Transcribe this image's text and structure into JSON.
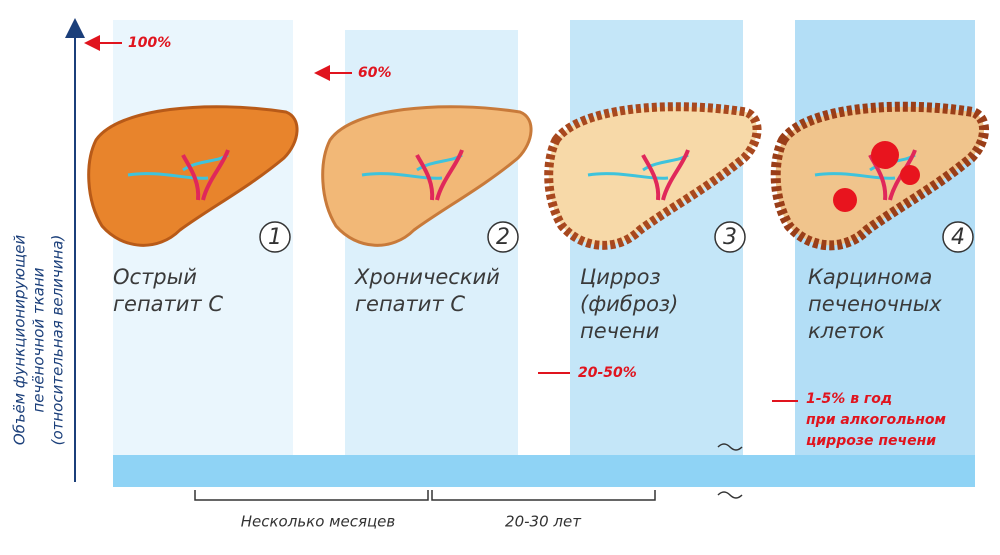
{
  "y_axis_label": {
    "lines": [
      "Объём функционирующей",
      "печёночной ткани",
      "(относительная величина)"
    ]
  },
  "stages": [
    {
      "number": "1",
      "label": [
        "Острый",
        "гепатит С"
      ],
      "marker": [
        "100%"
      ]
    },
    {
      "number": "2",
      "label": [
        "Хронический",
        "гепатит С"
      ],
      "marker": [
        "60%"
      ]
    },
    {
      "number": "3",
      "label": [
        "Цирроз",
        "(фиброз)",
        "печени"
      ],
      "marker": [
        "20-50%"
      ]
    },
    {
      "number": "4",
      "label": [
        "Карцинома",
        "печеночных",
        "клеток"
      ],
      "marker": [
        "1-5% в год",
        "при алкогольном",
        "циррозе печени"
      ]
    }
  ],
  "timeline": {
    "periods": [
      "Несколько месяцев",
      "20-30 лет"
    ]
  }
}
